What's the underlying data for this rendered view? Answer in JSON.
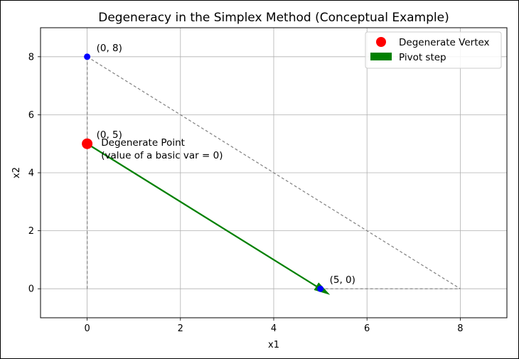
{
  "chart_data": {
    "type": "scatter",
    "title": "Degeneracy in the Simplex Method (Conceptual Example)",
    "xlabel": "x1",
    "ylabel": "x2",
    "xlim": [
      -1,
      9
    ],
    "ylim": [
      -1,
      9
    ],
    "xticks": [
      0,
      2,
      4,
      6,
      8
    ],
    "yticks": [
      0,
      2,
      4,
      6,
      8
    ],
    "grid": true,
    "legend_position": "top-right",
    "feasible_region_edges": [
      {
        "from": [
          0,
          0
        ],
        "to": [
          0,
          8
        ]
      },
      {
        "from": [
          0,
          8
        ],
        "to": [
          8,
          0
        ]
      },
      {
        "from": [
          5,
          0
        ],
        "to": [
          8,
          0
        ]
      }
    ],
    "vertices": [
      {
        "x": 0,
        "y": 8,
        "label": "(0, 8)"
      },
      {
        "x": 5,
        "y": 0,
        "label": "(5, 0)"
      }
    ],
    "degenerate_vertex": {
      "x": 0,
      "y": 5,
      "label": "(0, 5)"
    },
    "annotation": {
      "x": 0.3,
      "y": 5,
      "lines": [
        "Degenerate Point",
        "(value of a basic var = 0)"
      ]
    },
    "pivot": {
      "from": [
        0,
        5
      ],
      "to": [
        5.2,
        -0.2
      ]
    },
    "legend": [
      {
        "label": "Degenerate Vertex",
        "marker": "circle",
        "color": "#ff0000"
      },
      {
        "label": "Pivot step",
        "marker": "patch",
        "color": "#008000"
      }
    ],
    "colors": {
      "vertex": "#0000ff",
      "degenerate": "#ff0000",
      "pivot": "#008000",
      "region": "#808080",
      "grid": "#b0b0b0"
    }
  }
}
